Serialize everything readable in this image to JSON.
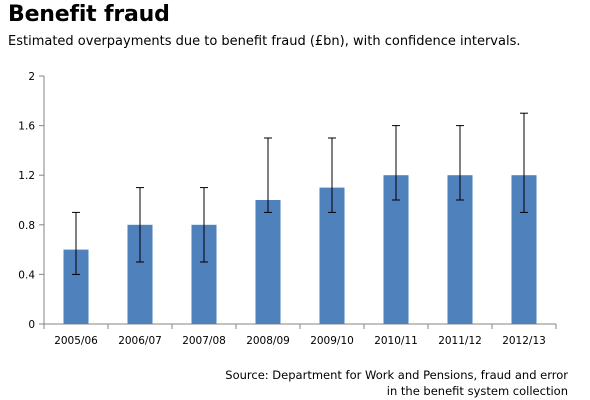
{
  "title": "Benefit fraud",
  "subtitle": "Estimated overpayments due to benefit fraud (£bn), with confidence intervals.",
  "source_line1": "Source: Department for Work and Pensions, fraud and error",
  "source_line2": "in the benefit system collection",
  "chart_data": {
    "type": "bar",
    "categories": [
      "2005/06",
      "2006/07",
      "2007/08",
      "2008/09",
      "2009/10",
      "2010/11",
      "2011/12",
      "2012/13"
    ],
    "values": [
      0.6,
      0.8,
      0.8,
      1.0,
      1.1,
      1.2,
      1.2,
      1.2
    ],
    "error_low": [
      0.4,
      0.5,
      0.5,
      0.9,
      0.9,
      1.0,
      1.0,
      0.9
    ],
    "error_high": [
      0.9,
      1.1,
      1.1,
      1.5,
      1.5,
      1.6,
      1.6,
      1.7
    ],
    "title": "Benefit fraud",
    "xlabel": "",
    "ylabel": "",
    "ylim": [
      0,
      2
    ],
    "yticks": [
      "0",
      "0.4",
      "0.8",
      "1.2",
      "1.6",
      "2"
    ],
    "bar_color": "#4f81bd",
    "grid": false,
    "legend": "none"
  }
}
